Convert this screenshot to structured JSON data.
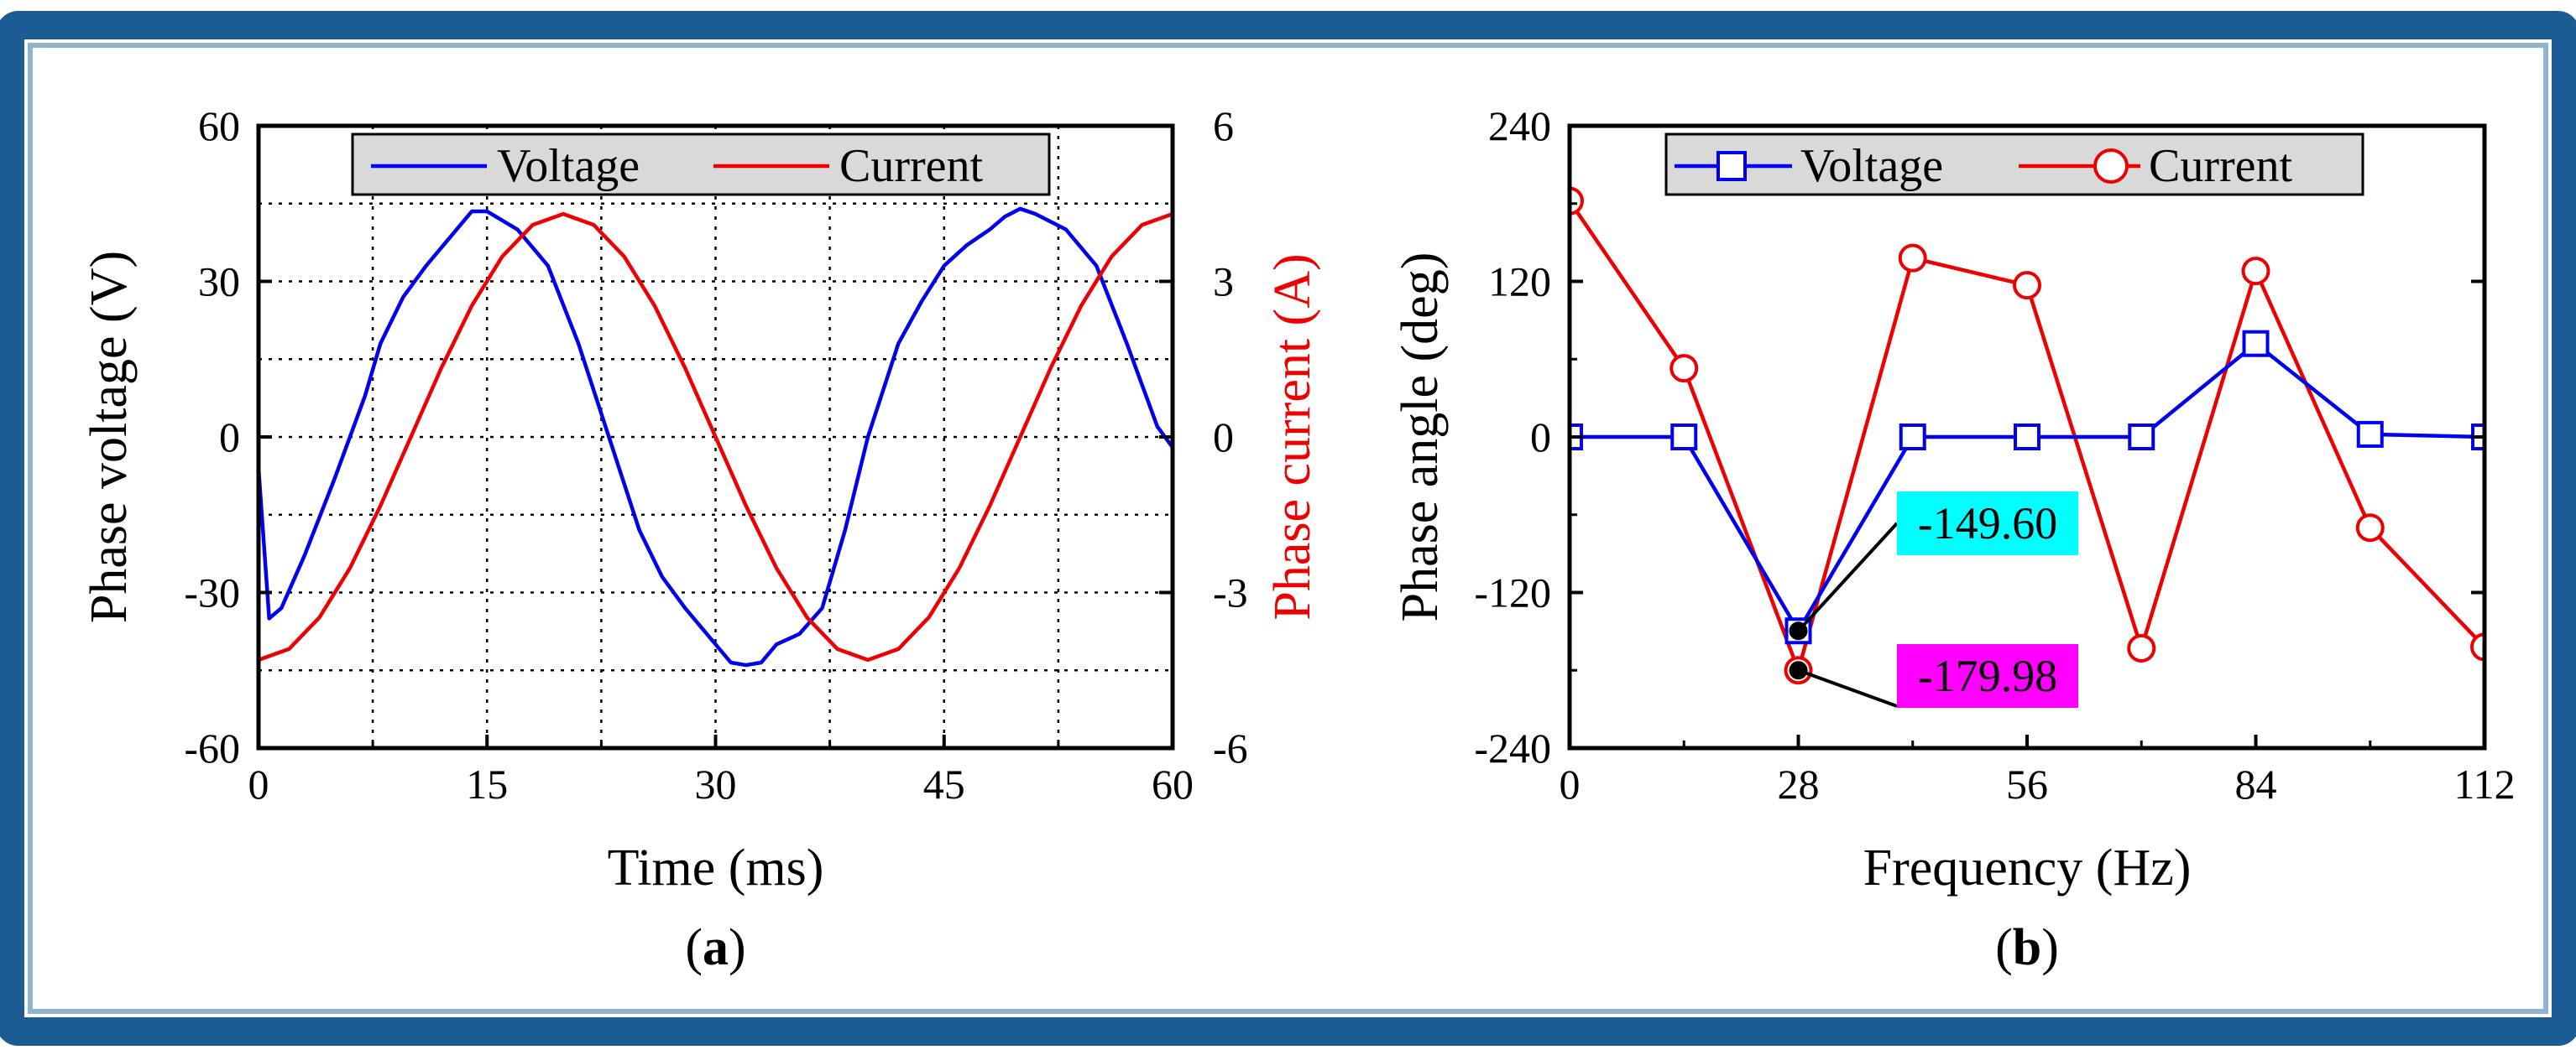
{
  "chart_data": [
    {
      "type": "line",
      "panel_label": "a",
      "xlabel": "Time (ms)",
      "ylabel": "Phase voltage (V)",
      "y2label": "Phase current (A)",
      "xlim": [
        0,
        60
      ],
      "ylim": [
        -60,
        60
      ],
      "y2lim": [
        -6,
        6
      ],
      "xticks": [
        "0",
        "15",
        "30",
        "45",
        "60"
      ],
      "yticks": [
        "-60",
        "-30",
        "0",
        "30",
        "60"
      ],
      "y2ticks": [
        "-6",
        "-3",
        "0",
        "3",
        "6"
      ],
      "grid": true,
      "legend_position": "top",
      "series": [
        {
          "name": "Voltage",
          "color": "#0000ee",
          "axis": "left",
          "x": [
            0,
            0.7,
            1.5,
            3,
            5,
            7,
            8,
            9.5,
            11,
            13,
            14,
            15,
            17,
            19,
            21,
            23,
            25,
            26.5,
            28,
            30,
            31,
            32,
            33,
            34,
            35.5,
            37,
            38.5,
            40,
            42,
            43.5,
            45,
            46.5,
            48,
            49,
            50,
            51,
            53,
            55,
            57,
            59,
            60
          ],
          "values": [
            -6,
            -35,
            -33,
            -23,
            -8,
            8,
            18,
            27,
            33,
            40,
            43.5,
            43.5,
            40,
            33,
            18,
            0,
            -18,
            -27,
            -33,
            -40,
            -43.5,
            -44,
            -43.5,
            -40,
            -38,
            -33,
            -18,
            0,
            18,
            26,
            33,
            37,
            40,
            42.5,
            44,
            43,
            40,
            33,
            18,
            2,
            -2
          ]
        },
        {
          "name": "Current",
          "color": "#ee0000",
          "axis": "right",
          "x": [
            0,
            2,
            4,
            6,
            8,
            10,
            12,
            14,
            16,
            18,
            20,
            22,
            24,
            26,
            28,
            30,
            32,
            34,
            36,
            38,
            40,
            42,
            44,
            46,
            48,
            50,
            52,
            54,
            56,
            58,
            60
          ],
          "values": [
            -4.3,
            -4.09,
            -3.48,
            -2.53,
            -1.33,
            0,
            1.33,
            2.53,
            3.48,
            4.09,
            4.3,
            4.09,
            3.48,
            2.53,
            1.33,
            0,
            -1.33,
            -2.53,
            -3.48,
            -4.09,
            -4.3,
            -4.09,
            -3.48,
            -2.53,
            -1.33,
            0,
            1.33,
            2.53,
            3.48,
            4.09,
            4.3
          ]
        }
      ]
    },
    {
      "type": "line",
      "panel_label": "b",
      "xlabel": "Frequency (Hz)",
      "ylabel": "Phase angle (deg)",
      "xlim": [
        0,
        112
      ],
      "ylim": [
        -240,
        240
      ],
      "xticks": [
        "0",
        "28",
        "56",
        "84",
        "112"
      ],
      "yticks": [
        "-240",
        "-120",
        "0",
        "120",
        "240"
      ],
      "legend_position": "top",
      "series": [
        {
          "name": "Voltage",
          "color": "#0000ee",
          "marker": "square",
          "x": [
            0,
            14,
            28,
            42,
            56,
            70,
            84,
            98,
            112
          ],
          "values": [
            0,
            0,
            -149.6,
            0,
            0,
            0,
            72,
            2,
            0
          ]
        },
        {
          "name": "Current",
          "color": "#ee0000",
          "marker": "circle",
          "x": [
            0,
            14,
            28,
            42,
            56,
            70,
            84,
            98,
            112
          ],
          "values": [
            182,
            53,
            -179.98,
            138,
            117,
            -163,
            128,
            -70,
            -162
          ]
        }
      ],
      "annotations": [
        {
          "text": "-149.60",
          "x": 28,
          "y": -149.6,
          "bg": "#00ffff"
        },
        {
          "text": "-179.98",
          "x": 28,
          "y": -179.98,
          "bg": "#ff00ff"
        }
      ]
    }
  ],
  "colors": {
    "frame_blue": "#1d5b94",
    "frame_inner": "#8fb4d2",
    "legend_bg": "#d9d9d9",
    "grid": "#000000"
  }
}
